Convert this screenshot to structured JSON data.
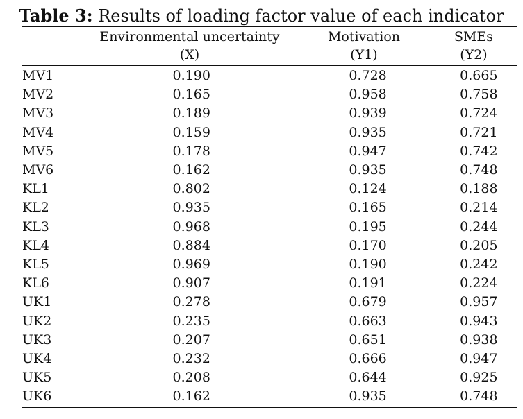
{
  "caption": {
    "label": "Table 3:",
    "text": " Results of loading factor value of each indicator"
  },
  "columns": [
    {
      "name": "Environmental uncertainty",
      "code": "(X)"
    },
    {
      "name": "Motivation",
      "code": "(Y1)"
    },
    {
      "name": "SMEs",
      "code": "(Y2)"
    }
  ],
  "rows": [
    {
      "indicator": "MV1",
      "x": "0.190",
      "y1": "0.728",
      "y2": "0.665"
    },
    {
      "indicator": "MV2",
      "x": "0.165",
      "y1": "0.958",
      "y2": "0.758"
    },
    {
      "indicator": "MV3",
      "x": "0.189",
      "y1": "0.939",
      "y2": "0.724"
    },
    {
      "indicator": "MV4",
      "x": "0.159",
      "y1": "0.935",
      "y2": "0.721"
    },
    {
      "indicator": "MV5",
      "x": "0.178",
      "y1": "0.947",
      "y2": "0.742"
    },
    {
      "indicator": "MV6",
      "x": "0.162",
      "y1": "0.935",
      "y2": "0.748"
    },
    {
      "indicator": "KL1",
      "x": "0.802",
      "y1": "0.124",
      "y2": "0.188"
    },
    {
      "indicator": "KL2",
      "x": "0.935",
      "y1": "0.165",
      "y2": "0.214"
    },
    {
      "indicator": "KL3",
      "x": "0.968",
      "y1": "0.195",
      "y2": "0.244"
    },
    {
      "indicator": "KL4",
      "x": "0.884",
      "y1": "0.170",
      "y2": "0.205"
    },
    {
      "indicator": "KL5",
      "x": "0.969",
      "y1": "0.190",
      "y2": "0.242"
    },
    {
      "indicator": "KL6",
      "x": "0.907",
      "y1": "0.191",
      "y2": "0.224"
    },
    {
      "indicator": "UK1",
      "x": "0.278",
      "y1": "0.679",
      "y2": "0.957"
    },
    {
      "indicator": "UK2",
      "x": "0.235",
      "y1": "0.663",
      "y2": "0.943"
    },
    {
      "indicator": "UK3",
      "x": "0.207",
      "y1": "0.651",
      "y2": "0.938"
    },
    {
      "indicator": "UK4",
      "x": "0.232",
      "y1": "0.666",
      "y2": "0.947"
    },
    {
      "indicator": "UK5",
      "x": "0.208",
      "y1": "0.644",
      "y2": "0.925"
    },
    {
      "indicator": "UK6",
      "x": "0.162",
      "y1": "0.935",
      "y2": "0.748"
    }
  ]
}
